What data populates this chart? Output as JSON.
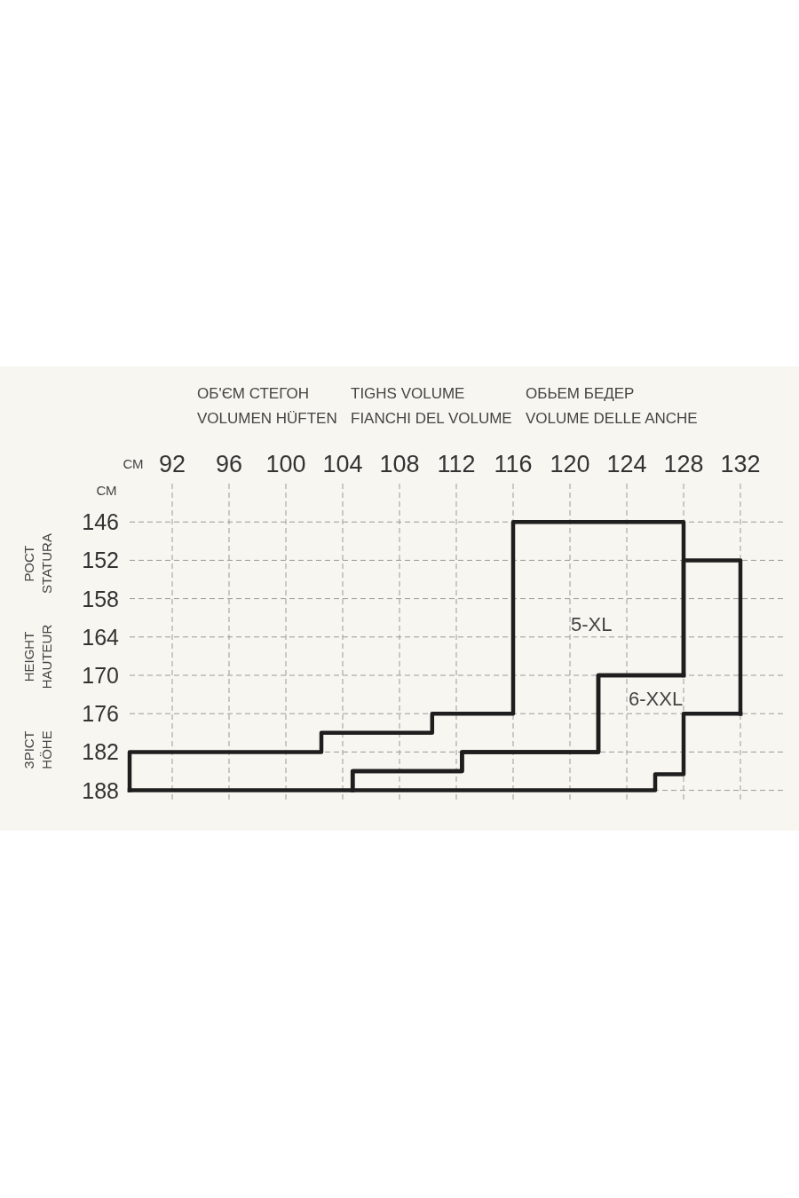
{
  "chart_data": {
    "type": "line",
    "xlim": [
      89,
      135
    ],
    "ylim": [
      190,
      140
    ],
    "xticks": [
      92,
      96,
      100,
      104,
      108,
      112,
      116,
      120,
      124,
      128,
      132
    ],
    "yticks": [
      146,
      152,
      158,
      164,
      170,
      176,
      182,
      188
    ],
    "grid": true,
    "marker": "none",
    "line_style": "solid",
    "series": [
      {
        "color": "#1e1e1e",
        "x": [
          89,
          89,
          102.5,
          102.5,
          110.3,
          110.3,
          116,
          116,
          128,
          128
        ],
        "values": [
          188,
          182,
          182,
          179,
          179,
          176,
          176,
          146,
          146,
          170
        ]
      },
      {
        "color": "#1e1e1e",
        "x": [
          89,
          104.7,
          104.7,
          112.4,
          112.4,
          122,
          122,
          128
        ],
        "values": [
          188,
          188,
          185,
          185,
          182,
          182,
          170,
          170
        ]
      },
      {
        "color": "#1e1e1e",
        "x": [
          104.7,
          104.7,
          112.4,
          112.4,
          122,
          122,
          128,
          128,
          132,
          132
        ],
        "values": [
          188,
          185,
          185,
          182,
          182,
          170,
          170,
          152,
          152,
          176
        ]
      },
      {
        "color": "#1e1e1e",
        "x": [
          104.7,
          126,
          126,
          128,
          128,
          132
        ],
        "values": [
          188,
          188,
          185.5,
          185.5,
          176,
          176
        ]
      }
    ],
    "annotations": [
      "ОБ'ЄМ СТЕГОН",
      "VOLUMEN HÜFTEN",
      "TIGHS VOLUME",
      "FIANCHI DEL VOLUME",
      "ОБЬЕМ БЕДЕР",
      "VOLUME DELLE ANCHE",
      "СМ",
      "СМ",
      "РОСТ",
      "STATURA",
      "HEIGHT",
      "HAUTEUR",
      "ЗРІСТ",
      "HÖHE",
      "5-XL",
      "6-XXL"
    ]
  }
}
